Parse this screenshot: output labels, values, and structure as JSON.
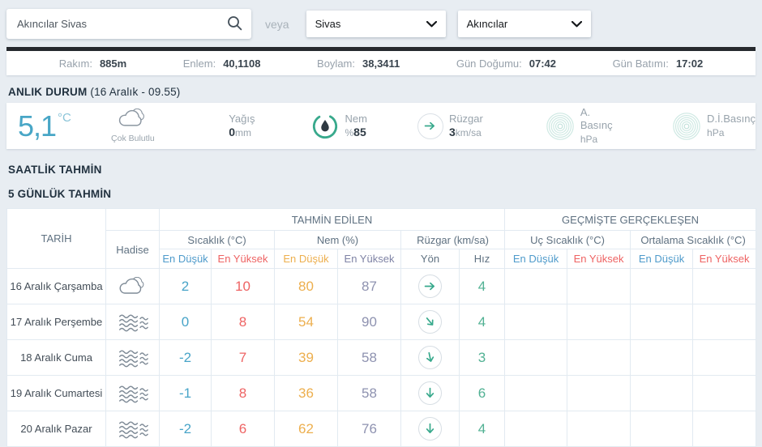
{
  "topbar": {
    "search_value": "Akıncılar Sivas",
    "or_label": "veya",
    "province_select": "Sivas",
    "district_select": "Akıncılar"
  },
  "info_bar": {
    "items": [
      {
        "label": "Rakım:",
        "value": "885m"
      },
      {
        "label": "Enlem:",
        "value": "40,1108"
      },
      {
        "label": "Boylam:",
        "value": "38,3411"
      },
      {
        "label": "Gün Doğumu:",
        "value": "07:42"
      },
      {
        "label": "Gün Batımı:",
        "value": "17:02"
      }
    ]
  },
  "current": {
    "section_title": "ANLIK DURUM",
    "section_subtitle": "(16 Aralık - 09.55)",
    "temperature": "5,1",
    "temperature_unit": "°C",
    "condition": "Çok Bulutlu",
    "condition_icon": "cloudy",
    "precip_label": "Yağış",
    "precip_value": "0",
    "precip_unit": "mm",
    "humidity_label": "Nem",
    "humidity_prefix": "%",
    "humidity_value": "85",
    "wind_label": "Rüzgar",
    "wind_value": "3",
    "wind_unit": "km/sa",
    "pressure_label": "A. Basınç",
    "pressure_unit": "hPa",
    "sea_pressure_label": "D.İ.Basınç",
    "sea_pressure_unit": "hPa"
  },
  "sections": {
    "hourly_title": "SAATLİK TAHMİN",
    "daily_title": "5 GÜNLÜK TAHMİN"
  },
  "table": {
    "col_date": "TARİH",
    "col_event": "Hadise",
    "group_forecast": "TAHMİN EDİLEN",
    "group_past": "GEÇMİŞTE GERÇEKLEŞEN",
    "sub_temp": "Sıcaklık (°C)",
    "sub_hum": "Nem (%)",
    "sub_wind": "Rüzgar (km/sa)",
    "sub_extreme": "Uç Sıcaklık (°C)",
    "sub_avg": "Ortalama Sıcaklık (°C)",
    "col_min": "En Düşük",
    "col_max": "En Yüksek",
    "col_dir": "Yön",
    "col_speed": "Hız",
    "rows": [
      {
        "date": "16 Aralık Çarşamba",
        "event_icon": "cloudy",
        "temp_min": "2",
        "temp_max": "10",
        "hum_min": "80",
        "hum_max": "87",
        "wind_dir_deg": 0,
        "wind_speed": "4",
        "past_extreme_min": "",
        "past_extreme_max": "",
        "past_avg_min": "",
        "past_avg_max": ""
      },
      {
        "date": "17 Aralık Perşembe",
        "event_icon": "fog",
        "temp_min": "0",
        "temp_max": "8",
        "hum_min": "54",
        "hum_max": "90",
        "wind_dir_deg": 50,
        "wind_speed": "4",
        "past_extreme_min": "",
        "past_extreme_max": "",
        "past_avg_min": "",
        "past_avg_max": ""
      },
      {
        "date": "18 Aralık Cuma",
        "event_icon": "fog",
        "temp_min": "-2",
        "temp_max": "7",
        "hum_min": "39",
        "hum_max": "58",
        "wind_dir_deg": 78,
        "wind_speed": "3",
        "past_extreme_min": "",
        "past_extreme_max": "",
        "past_avg_min": "",
        "past_avg_max": ""
      },
      {
        "date": "19 Aralık Cumartesi",
        "event_icon": "fog",
        "temp_min": "-1",
        "temp_max": "8",
        "hum_min": "36",
        "hum_max": "58",
        "wind_dir_deg": 90,
        "wind_speed": "6",
        "past_extreme_min": "",
        "past_extreme_max": "",
        "past_avg_min": "",
        "past_avg_max": ""
      },
      {
        "date": "20 Aralık Pazar",
        "event_icon": "fog",
        "temp_min": "-2",
        "temp_max": "6",
        "hum_min": "62",
        "hum_max": "76",
        "wind_dir_deg": 90,
        "wind_speed": "4",
        "past_extreme_min": "",
        "past_extreme_max": "",
        "past_avg_min": "",
        "past_avg_max": ""
      }
    ]
  },
  "colors": {
    "temp_teal": "#48a6c6",
    "min_blue_header": "#4f9bcb",
    "min_blue_value": "#48a4c8",
    "max_red": "#ee6363",
    "humidity_min_orange": "#edaf4e",
    "humidity_max_slate": "#8e92b0",
    "wind_speed_teal": "#51b193",
    "icon_teal": "#38a98c",
    "dark_strip": "#26292e",
    "page_background": "#e8edf2"
  }
}
